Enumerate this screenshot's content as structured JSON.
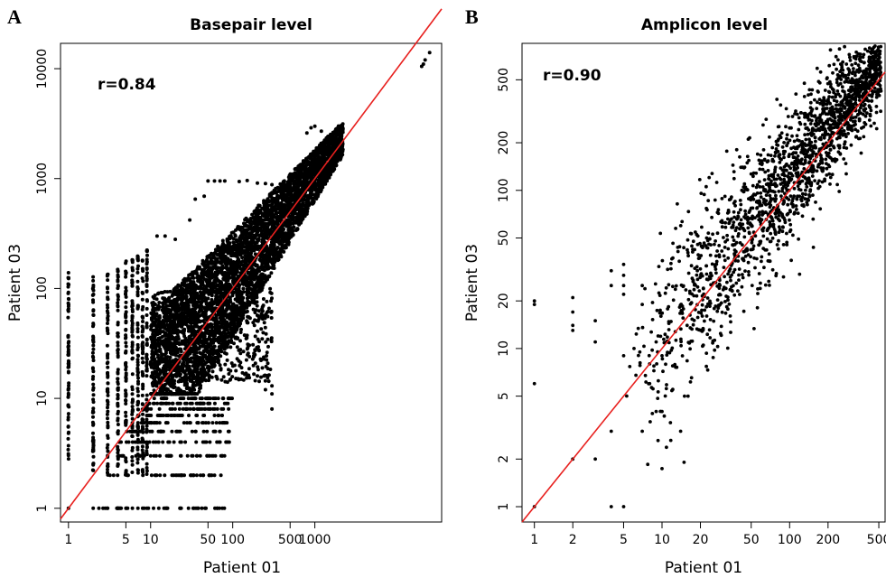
{
  "chart_data": [
    {
      "panel": "A",
      "type": "scatter",
      "title": "Basepair level",
      "annotation": "r=0.84",
      "xlabel": "Patient 01",
      "ylabel": "Patient 03",
      "xscale": "log",
      "yscale": "log",
      "xlim": [
        0.8,
        35000
      ],
      "ylim": [
        0.75,
        17000
      ],
      "x_ticks": [
        1,
        5,
        10,
        50,
        100,
        500,
        1000
      ],
      "x_tick_labels": [
        "1",
        "5",
        "10",
        "50",
        "100",
        "500",
        "1000"
      ],
      "y_ticks": [
        1,
        10,
        100,
        1000,
        10000
      ],
      "y_tick_labels": [
        "1",
        "10",
        "100",
        "1000",
        "10000"
      ],
      "reference_line": {
        "type": "y=x",
        "color": "#e8201e"
      },
      "grid": false,
      "points_note": "very dense cloud of integer-valued points; highest points near (22000, 12000)"
    },
    {
      "panel": "B",
      "type": "scatter",
      "title": "Amplicon level",
      "annotation": "r=0.90",
      "xlabel": "Patient 01",
      "ylabel": "Patient 03",
      "xscale": "log",
      "yscale": "log",
      "xlim": [
        0.8,
        560
      ],
      "ylim": [
        0.8,
        850
      ],
      "x_ticks": [
        1,
        2,
        5,
        10,
        20,
        50,
        100,
        200,
        500
      ],
      "x_tick_labels": [
        "1",
        "2",
        "5",
        "10",
        "20",
        "50",
        "100",
        "200",
        "500"
      ],
      "y_ticks": [
        1,
        2,
        5,
        10,
        20,
        50,
        100,
        200,
        500
      ],
      "y_tick_labels": [
        "1",
        "2",
        "5",
        "10",
        "20",
        "50",
        "100",
        "200",
        "500"
      ],
      "reference_line": {
        "type": "y=x",
        "color": "#e8201e"
      },
      "grid": false,
      "points": [
        [
          1,
          1
        ],
        [
          1,
          6
        ],
        [
          1,
          19
        ],
        [
          1,
          20
        ],
        [
          2,
          2
        ],
        [
          2,
          13
        ],
        [
          2,
          14
        ],
        [
          2,
          17
        ],
        [
          2,
          21
        ],
        [
          3,
          2
        ],
        [
          3,
          11
        ],
        [
          3,
          15
        ],
        [
          4,
          1
        ],
        [
          4,
          3
        ],
        [
          4,
          25
        ],
        [
          4,
          31
        ],
        [
          5,
          1
        ],
        [
          5,
          9
        ],
        [
          5,
          22
        ],
        [
          5,
          25
        ],
        [
          5,
          29
        ],
        [
          5,
          34
        ],
        [
          7,
          3
        ],
        [
          7,
          19
        ],
        [
          7,
          25
        ],
        [
          8,
          6
        ],
        [
          8,
          8
        ],
        [
          9,
          4
        ],
        [
          9,
          11
        ],
        [
          10,
          4
        ],
        [
          10,
          9
        ],
        [
          14,
          3
        ],
        [
          15,
          5
        ],
        [
          16,
          5
        ]
      ]
    }
  ]
}
